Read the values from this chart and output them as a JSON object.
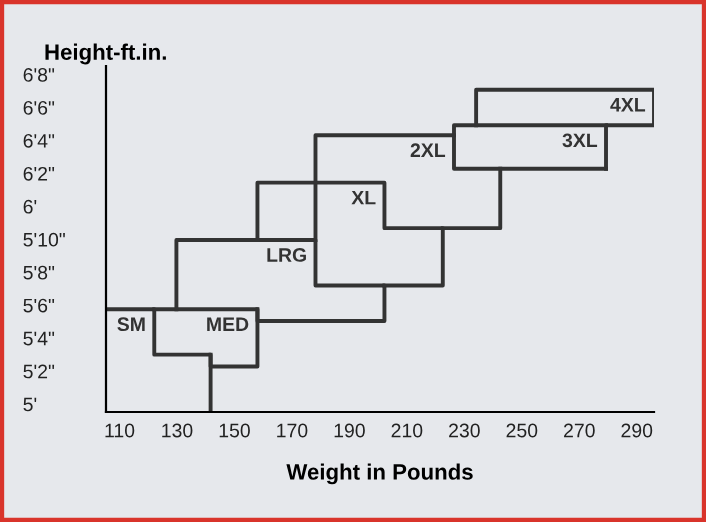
{
  "chart_data": {
    "type": "line",
    "xlabel": "Weight in Pounds",
    "ylabel": "Height-ft.in.",
    "xlim": [
      105.3,
      296
    ],
    "ylim": [
      4.96,
      6.71
    ],
    "xticks": [
      110,
      130,
      150,
      170,
      190,
      210,
      230,
      250,
      270,
      290
    ],
    "yticks": [
      {
        "value": 5,
        "label": "5'"
      },
      {
        "value": 5.1667,
        "label": "5'2\""
      },
      {
        "value": 5.3333,
        "label": "5'4\""
      },
      {
        "value": 5.5,
        "label": "5'6\""
      },
      {
        "value": 5.6667,
        "label": "5'8\""
      },
      {
        "value": 5.8333,
        "label": "5'10\""
      },
      {
        "value": 6,
        "label": "6'"
      },
      {
        "value": 6.1667,
        "label": "6'2\""
      },
      {
        "value": 6.3333,
        "label": "6'4\""
      },
      {
        "value": 6.5,
        "label": "6'6\""
      },
      {
        "value": 6.6667,
        "label": "6'8\""
      }
    ],
    "grid": false,
    "legend": false,
    "marker": "none",
    "line_style": "solid",
    "series": [
      {
        "name": "SM",
        "color": "#333333",
        "x": [
          105.3,
          122.1,
          122.1,
          141.7,
          141.7
        ],
        "values": [
          5.48,
          5.48,
          5.25,
          5.25,
          4.96
        ]
      },
      {
        "name": "MED",
        "color": "#333333",
        "x": [
          122.1,
          158,
          158,
          141.7,
          141.7
        ],
        "values": [
          5.48,
          5.48,
          5.19,
          5.19,
          5.25
        ]
      },
      {
        "name": "LRG",
        "color": "#333333",
        "x": [
          129.8,
          129.8,
          178.2,
          178.2,
          202.2,
          202.2,
          158,
          158
        ],
        "values": [
          5.48,
          5.83,
          5.83,
          5.6,
          5.6,
          5.42,
          5.42,
          5.48
        ]
      },
      {
        "name": "XL",
        "color": "#333333",
        "x": [
          158,
          158,
          202.2,
          202.2,
          222.5,
          222.5,
          202.2
        ],
        "values": [
          5.83,
          6.12,
          6.12,
          5.89,
          5.89,
          5.6,
          5.6
        ]
      },
      {
        "name": "2XL",
        "color": "#333333",
        "x": [
          178.2,
          178.2,
          226.4,
          null,
          242.5,
          242.5,
          222.5
        ],
        "values": [
          5.83,
          6.36,
          6.36,
          null,
          6.19,
          5.89,
          5.89
        ]
      },
      {
        "name": "3XL",
        "color": "#333333",
        "x": [
          279.3,
          226.4,
          226.4,
          279.3
        ],
        "values": [
          6.41,
          6.41,
          6.19,
          6.19
        ]
      },
      {
        "name": "4XL",
        "color": "#333333",
        "x": [
          234.1,
          234.1,
          296,
          296,
          279.3,
          279.3
        ],
        "values": [
          6.41,
          6.59,
          6.59,
          6.41,
          6.41,
          6.19
        ]
      }
    ]
  }
}
